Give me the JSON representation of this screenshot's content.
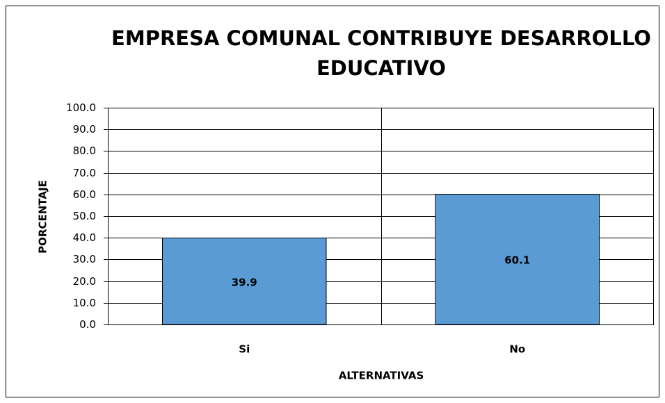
{
  "chart_data": {
    "type": "bar",
    "title": "EMPRESA COMUNAL CONTRIBUYE DESARROLLO EDUCATIVO",
    "categories": [
      "Si",
      "No"
    ],
    "values": [
      39.9,
      60.1
    ],
    "color": "#5b9bd5",
    "xlabel": "ALTERNATIVAS",
    "ylabel": "PORCENTAJE",
    "ylim": [
      0,
      100
    ],
    "yticks": [
      {
        "value": 0,
        "label": "0.0"
      },
      {
        "value": 10,
        "label": "10.0"
      },
      {
        "value": 20,
        "label": "20.0"
      },
      {
        "value": 30,
        "label": "30.0"
      },
      {
        "value": 40,
        "label": "40.0"
      },
      {
        "value": 50,
        "label": "50.0"
      },
      {
        "value": 60,
        "label": "60.0"
      },
      {
        "value": 70,
        "label": "70.0"
      },
      {
        "value": 80,
        "label": "80.0"
      },
      {
        "value": 90,
        "label": "90.0"
      },
      {
        "value": 100,
        "label": "100.0"
      }
    ],
    "grid": true
  }
}
